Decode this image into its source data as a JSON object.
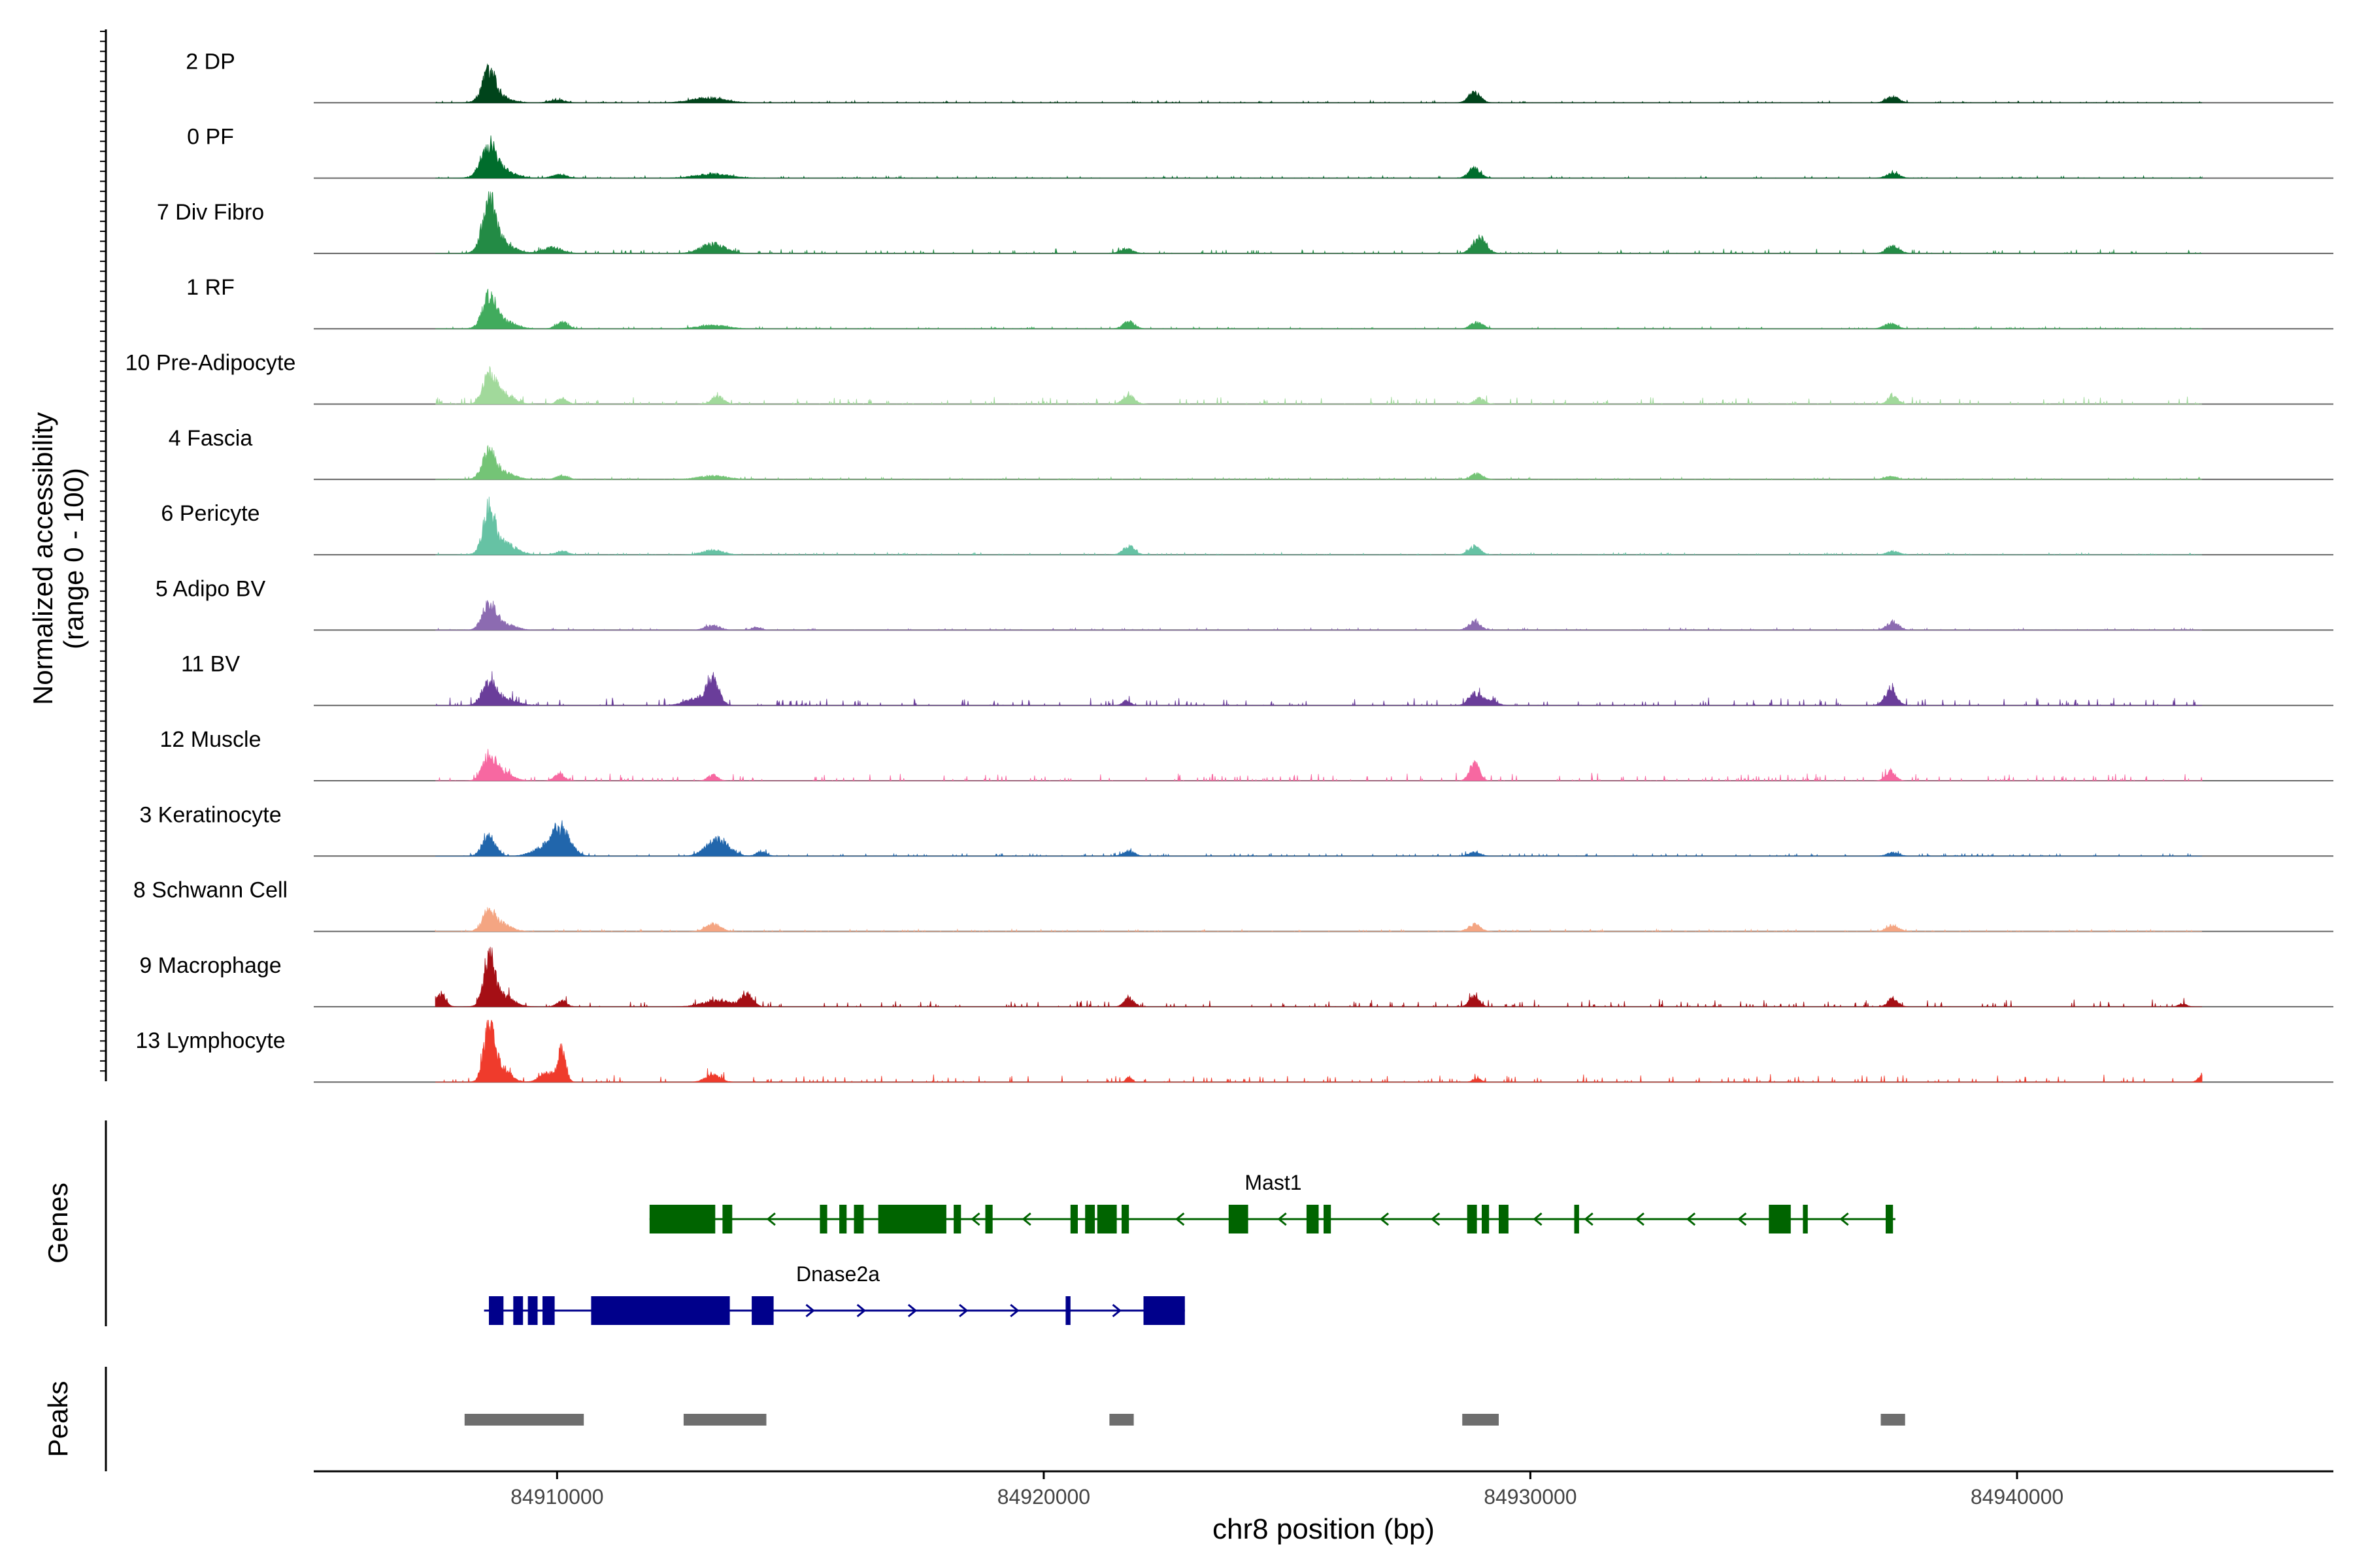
{
  "chart_data": {
    "type": "area",
    "title": "",
    "xlabel": "chr8 position (bp)",
    "xlim": [
      84905000,
      84946500
    ],
    "x_ticks": [
      84910000,
      84920000,
      84930000,
      84940000
    ],
    "x_tick_labels": [
      "84910000",
      "84920000",
      "84930000",
      "84940000"
    ],
    "coverage_ylabel_line1": "Normalized accessibility",
    "coverage_ylabel_line2": "(range 0 - 100)",
    "coverage_ylim": [
      0,
      100
    ],
    "tracks": [
      {
        "name": "2 DP",
        "color": "#00441b",
        "noise": 1.5,
        "peaks": [
          [
            84908600,
            45,
            130
          ],
          [
            84908750,
            12,
            250
          ],
          [
            84910000,
            5,
            150
          ],
          [
            84913100,
            8,
            350
          ],
          [
            84928850,
            18,
            120
          ],
          [
            84937450,
            10,
            130
          ]
        ]
      },
      {
        "name": "0 PF",
        "color": "#006d2c",
        "noise": 1.5,
        "peaks": [
          [
            84908600,
            48,
            150
          ],
          [
            84908800,
            15,
            280
          ],
          [
            84910050,
            6,
            150
          ],
          [
            84913200,
            7,
            350
          ],
          [
            84928850,
            17,
            120
          ],
          [
            84937450,
            8,
            130
          ]
        ]
      },
      {
        "name": "7 Div Fibro",
        "color": "#238b45",
        "noise": 3,
        "peaks": [
          [
            84908600,
            85,
            120
          ],
          [
            84908800,
            22,
            260
          ],
          [
            84909900,
            10,
            200
          ],
          [
            84913200,
            16,
            250
          ],
          [
            84921700,
            8,
            130
          ],
          [
            84928950,
            26,
            140
          ],
          [
            84937450,
            13,
            130
          ]
        ]
      },
      {
        "name": "1 RF",
        "color": "#41ab5d",
        "noise": 1.5,
        "peaks": [
          [
            84908600,
            48,
            130
          ],
          [
            84908850,
            15,
            250
          ],
          [
            84910100,
            12,
            120
          ],
          [
            84913200,
            6,
            300
          ],
          [
            84921750,
            12,
            120
          ],
          [
            84928900,
            12,
            120
          ],
          [
            84937400,
            9,
            130
          ]
        ]
      },
      {
        "name": "10 Pre-Adipocyte",
        "color": "#a1d99b",
        "noise": 5,
        "peaks": [
          [
            84908600,
            45,
            130
          ],
          [
            84908900,
            18,
            200
          ],
          [
            84910100,
            10,
            100
          ],
          [
            84913300,
            14,
            120
          ],
          [
            84921750,
            14,
            120
          ],
          [
            84928950,
            10,
            100
          ],
          [
            84937450,
            15,
            100
          ]
        ]
      },
      {
        "name": "4 Fascia",
        "color": "#74c476",
        "noise": 1.5,
        "peaks": [
          [
            84908600,
            42,
            130
          ],
          [
            84908850,
            12,
            250
          ],
          [
            84910100,
            6,
            120
          ],
          [
            84913200,
            6,
            300
          ],
          [
            84928900,
            10,
            120
          ],
          [
            84937400,
            5,
            120
          ]
        ]
      },
      {
        "name": "6 Pericyte",
        "color": "#66c2a4",
        "noise": 1.5,
        "peaks": [
          [
            84908600,
            68,
            110
          ],
          [
            84908850,
            22,
            260
          ],
          [
            84910100,
            6,
            120
          ],
          [
            84913200,
            8,
            200
          ],
          [
            84921750,
            14,
            120
          ],
          [
            84928850,
            14,
            120
          ],
          [
            84937450,
            6,
            120
          ]
        ]
      },
      {
        "name": "5 Adipo BV",
        "color": "#8c6bb1",
        "noise": 1.5,
        "peaks": [
          [
            84908600,
            40,
            130
          ],
          [
            84908850,
            12,
            240
          ],
          [
            84913200,
            8,
            150
          ],
          [
            84914100,
            5,
            100
          ],
          [
            84928850,
            14,
            120
          ],
          [
            84937450,
            14,
            120
          ]
        ]
      },
      {
        "name": "11 BV",
        "color": "#6a3d9a",
        "noise": 5,
        "peaks": [
          [
            84908600,
            35,
            140
          ],
          [
            84908900,
            12,
            250
          ],
          [
            84913200,
            40,
            120
          ],
          [
            84912900,
            12,
            250
          ],
          [
            84921700,
            8,
            80
          ],
          [
            84928850,
            20,
            120
          ],
          [
            84929150,
            8,
            150
          ],
          [
            84937400,
            28,
            120
          ]
        ]
      },
      {
        "name": "12 Muscle",
        "color": "#f768a1",
        "noise": 5,
        "peaks": [
          [
            84908600,
            38,
            130
          ],
          [
            84908850,
            15,
            200
          ],
          [
            84910050,
            12,
            100
          ],
          [
            84913200,
            10,
            100
          ],
          [
            84928850,
            30,
            100
          ],
          [
            84937400,
            16,
            100
          ]
        ]
      },
      {
        "name": "3 Keratinocyte",
        "color": "#2166ac",
        "noise": 2,
        "peaks": [
          [
            84908600,
            35,
            130
          ],
          [
            84910050,
            48,
            200
          ],
          [
            84909600,
            8,
            200
          ],
          [
            84913300,
            30,
            220
          ],
          [
            84914200,
            8,
            100
          ],
          [
            84921750,
            8,
            120
          ],
          [
            84928850,
            6,
            120
          ],
          [
            84937450,
            6,
            120
          ]
        ]
      },
      {
        "name": "8 Schwann Cell",
        "color": "#f4a582",
        "noise": 1.5,
        "peaks": [
          [
            84908600,
            32,
            130
          ],
          [
            84908850,
            12,
            200
          ],
          [
            84913200,
            12,
            150
          ],
          [
            84928850,
            12,
            120
          ],
          [
            84937450,
            10,
            120
          ]
        ]
      },
      {
        "name": "9 Macrophage",
        "color": "#a50f15",
        "noise": 5,
        "peaks": [
          [
            84908600,
            78,
            110
          ],
          [
            84908850,
            20,
            220
          ],
          [
            84907600,
            22,
            100
          ],
          [
            84910100,
            10,
            100
          ],
          [
            84913900,
            20,
            120
          ],
          [
            84913300,
            10,
            300
          ],
          [
            84921750,
            14,
            100
          ],
          [
            84928850,
            18,
            100
          ],
          [
            84937450,
            15,
            100
          ],
          [
            84943400,
            5,
            80
          ]
        ]
      },
      {
        "name": "13 Lymphocyte",
        "color": "#ef3b2c",
        "noise": 5,
        "peaks": [
          [
            84908600,
            90,
            110
          ],
          [
            84908850,
            25,
            180
          ],
          [
            84910100,
            55,
            80
          ],
          [
            84909800,
            15,
            150
          ],
          [
            84913200,
            12,
            150
          ],
          [
            84921750,
            8,
            60
          ],
          [
            84928900,
            6,
            80
          ],
          [
            84943800,
            10,
            80
          ],
          [
            84944300,
            12,
            80
          ]
        ]
      }
    ],
    "genes_label": "Genes",
    "genes": [
      {
        "name": "Mast1",
        "color": "#006400",
        "strand": "-",
        "start": 84911900,
        "end": 84937500,
        "exons": [
          [
            84911900,
            84913250
          ],
          [
            84913400,
            84913600
          ],
          [
            84915400,
            84915550
          ],
          [
            84915800,
            84915950
          ],
          [
            84916100,
            84916300
          ],
          [
            84916600,
            84918000
          ],
          [
            84918150,
            84918300
          ],
          [
            84918800,
            84918950
          ],
          [
            84920550,
            84920700
          ],
          [
            84920850,
            84921050
          ],
          [
            84921100,
            84921500
          ],
          [
            84921600,
            84921750
          ],
          [
            84923800,
            84924200
          ],
          [
            84925400,
            84925650
          ],
          [
            84925750,
            84925900
          ],
          [
            84928700,
            84928900
          ],
          [
            84929000,
            84929150
          ],
          [
            84929350,
            84929550
          ],
          [
            84930900,
            84931000
          ],
          [
            84934900,
            84935350
          ],
          [
            84935600,
            84935700
          ],
          [
            84937300,
            84937450
          ]
        ]
      },
      {
        "name": "Dnase2a",
        "color": "#00008b",
        "strand": "+",
        "start": 84908500,
        "end": 84922900,
        "exons": [
          [
            84908600,
            84908900
          ],
          [
            84909100,
            84909300
          ],
          [
            84909400,
            84909600
          ],
          [
            84909700,
            84909950
          ],
          [
            84910700,
            84913550
          ],
          [
            84914000,
            84914450
          ],
          [
            84920450,
            84920550
          ],
          [
            84922050,
            84922900
          ]
        ]
      }
    ],
    "peaks_label": "Peaks",
    "peaks_color": "#6e6e6e",
    "peaks": [
      [
        84908100,
        84910550
      ],
      [
        84912600,
        84914300
      ],
      [
        84921350,
        84921850
      ],
      [
        84928600,
        84929350
      ],
      [
        84937200,
        84937700
      ]
    ]
  }
}
